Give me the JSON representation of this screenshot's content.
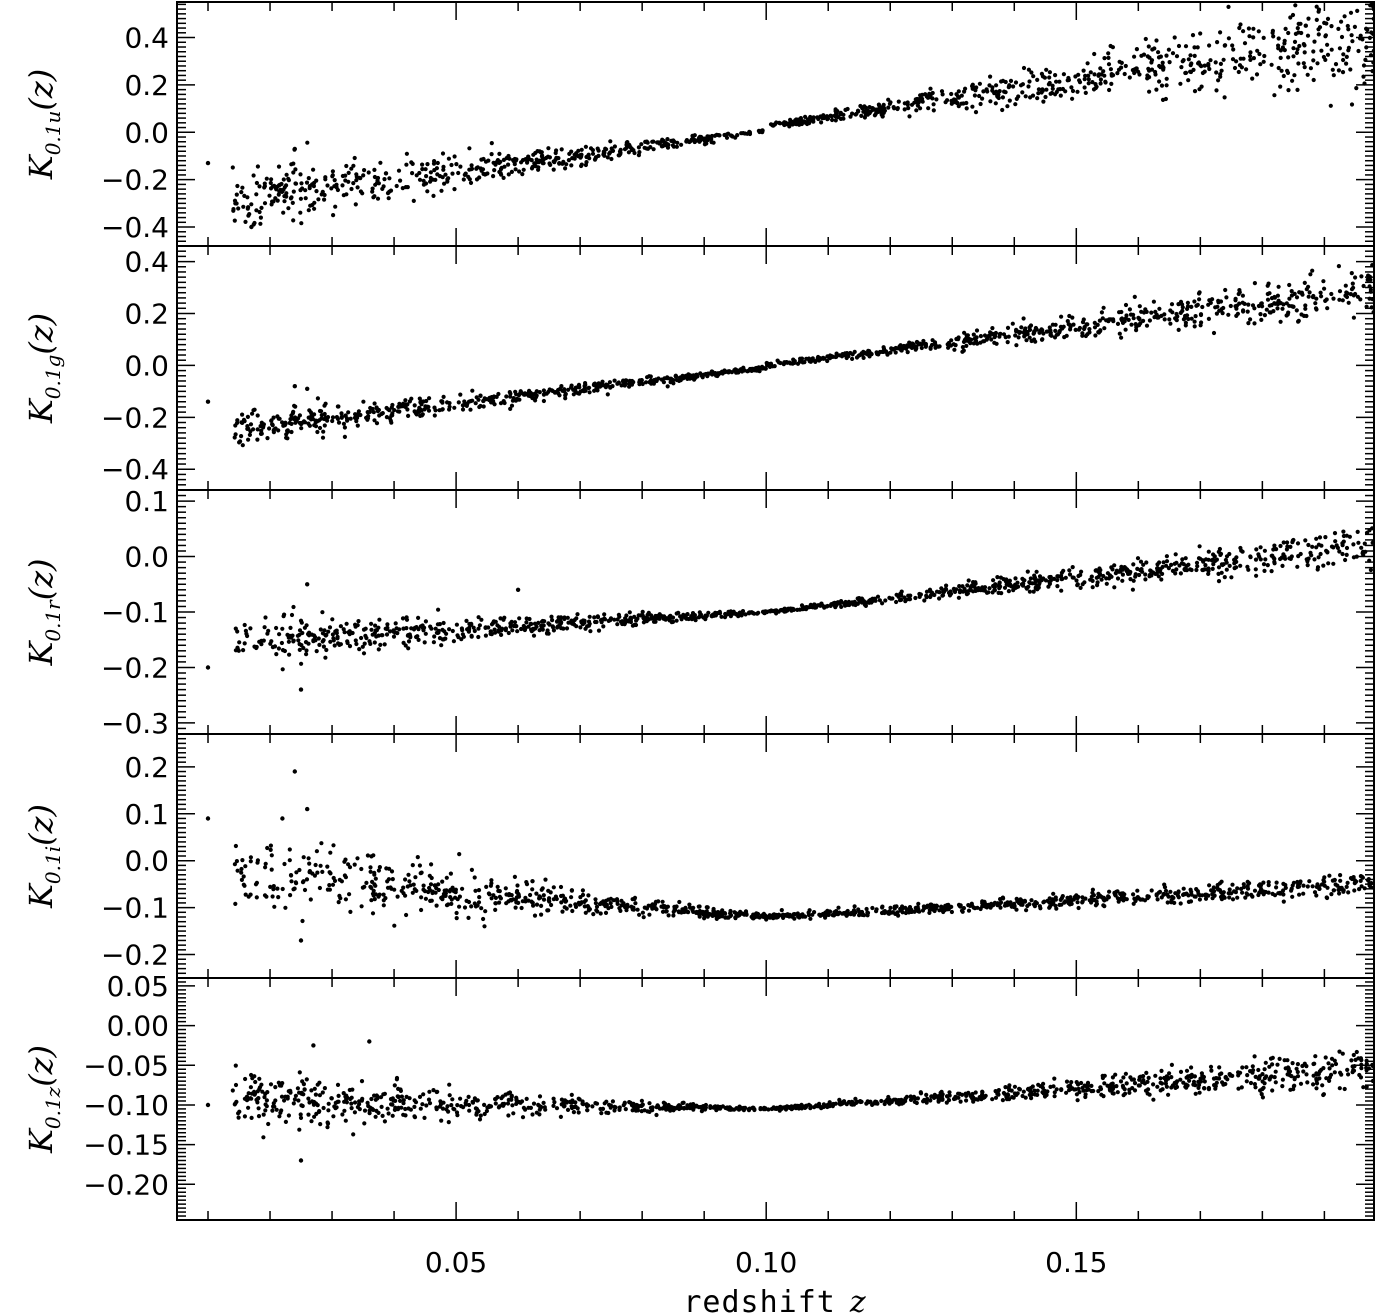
{
  "figure": {
    "xlabel_text": "redshift",
    "xlabel_symbol": "z",
    "x_ticks": [
      "0.05",
      "0.10",
      "0.15"
    ]
  },
  "chart_data": [
    {
      "type": "scatter",
      "ylabel": {
        "main": "K",
        "sub": "0.1u",
        "arg": "(z)"
      },
      "xlim": [
        0.005,
        0.198
      ],
      "ylim": [
        -0.48,
        0.55
      ],
      "y_ticks": [
        -0.4,
        -0.2,
        0.0,
        0.2,
        0.4
      ],
      "y_tick_labels": [
        "−0.4",
        "−0.2",
        "0.0",
        "0.2",
        "0.4"
      ],
      "trend": {
        "a": -0.26,
        "b": 0.026,
        "c": 0.41
      },
      "scatter_lo": 0.12,
      "scatter_mid": 0.01,
      "scatter_hi": 0.16,
      "bias": -0.02,
      "seed": 11,
      "points": [
        [
          0.01,
          -0.13
        ],
        [
          0.024,
          -0.07
        ],
        [
          0.017,
          -0.4
        ],
        [
          0.187,
          0.45
        ]
      ]
    },
    {
      "type": "scatter",
      "ylabel": {
        "main": "K",
        "sub": "0.1g",
        "arg": "(z)"
      },
      "xlim": [
        0.005,
        0.198
      ],
      "ylim": [
        -0.48,
        0.46
      ],
      "y_ticks": [
        -0.4,
        -0.2,
        0.0,
        0.2,
        0.4
      ],
      "y_tick_labels": [
        "−0.4",
        "−0.2",
        "0.0",
        "0.2",
        "0.4"
      ],
      "trend": {
        "a": -0.23,
        "b": 0.0,
        "c": 0.29
      },
      "scatter_lo": 0.06,
      "scatter_mid": 0.008,
      "scatter_hi": 0.07,
      "bias": -0.01,
      "seed": 23,
      "points": [
        [
          0.01,
          -0.14
        ],
        [
          0.024,
          -0.08
        ],
        [
          0.026,
          -0.09
        ],
        [
          0.197,
          0.33
        ]
      ]
    },
    {
      "type": "scatter",
      "ylabel": {
        "main": "K",
        "sub": "0.1r",
        "arg": "(z)"
      },
      "xlim": [
        0.005,
        0.198
      ],
      "ylim": [
        -0.32,
        0.12
      ],
      "y_ticks": [
        -0.3,
        -0.2,
        -0.1,
        0.0,
        0.1
      ],
      "y_tick_labels": [
        "−0.3",
        "−0.2",
        "−0.1",
        "0.0",
        "0.1"
      ],
      "trend": {
        "a": -0.155,
        "b": -0.1,
        "c": 0.02
      },
      "scatter_lo": 0.04,
      "scatter_mid": 0.003,
      "scatter_hi": 0.03,
      "bias": 0.0,
      "seed": 37,
      "points": [
        [
          0.01,
          -0.2
        ],
        [
          0.026,
          -0.05
        ],
        [
          0.06,
          -0.06
        ],
        [
          0.025,
          -0.24
        ]
      ]
    },
    {
      "type": "scatter",
      "ylabel": {
        "main": "K",
        "sub": "0.1i",
        "arg": "(z)"
      },
      "xlim": [
        0.005,
        0.198
      ],
      "ylim": [
        -0.25,
        0.27
      ],
      "y_ticks": [
        -0.2,
        -0.1,
        0.0,
        0.1,
        0.2
      ],
      "y_tick_labels": [
        "−0.2",
        "−0.1",
        "0.0",
        "0.1",
        "0.2"
      ],
      "trend": {
        "a": -0.03,
        "b": -0.12,
        "c": -0.05
      },
      "scatter_lo": 0.08,
      "scatter_mid": 0.006,
      "scatter_hi": 0.02,
      "bias": 0.0,
      "seed": 51,
      "points": [
        [
          0.01,
          0.09
        ],
        [
          0.024,
          0.19
        ],
        [
          0.026,
          0.11
        ],
        [
          0.022,
          0.09
        ],
        [
          0.025,
          -0.17
        ]
      ]
    },
    {
      "type": "scatter",
      "ylabel": {
        "main": "K",
        "sub": "0.1z",
        "arg": "(z)"
      },
      "xlim": [
        0.005,
        0.198
      ],
      "ylim": [
        -0.245,
        0.06
      ],
      "y_ticks": [
        -0.2,
        -0.15,
        -0.1,
        -0.05,
        0.0,
        0.05
      ],
      "y_tick_labels": [
        "−0.20",
        "−0.15",
        "−0.10",
        "−0.05",
        "0.00",
        "0.05"
      ],
      "trend": {
        "a": -0.095,
        "b": -0.105,
        "c": -0.055
      },
      "scatter_lo": 0.03,
      "scatter_mid": 0.002,
      "scatter_hi": 0.02,
      "bias": 0.0,
      "seed": 67,
      "points": [
        [
          0.01,
          -0.1
        ],
        [
          0.036,
          -0.02
        ],
        [
          0.027,
          -0.025
        ],
        [
          0.025,
          -0.17
        ]
      ]
    }
  ]
}
